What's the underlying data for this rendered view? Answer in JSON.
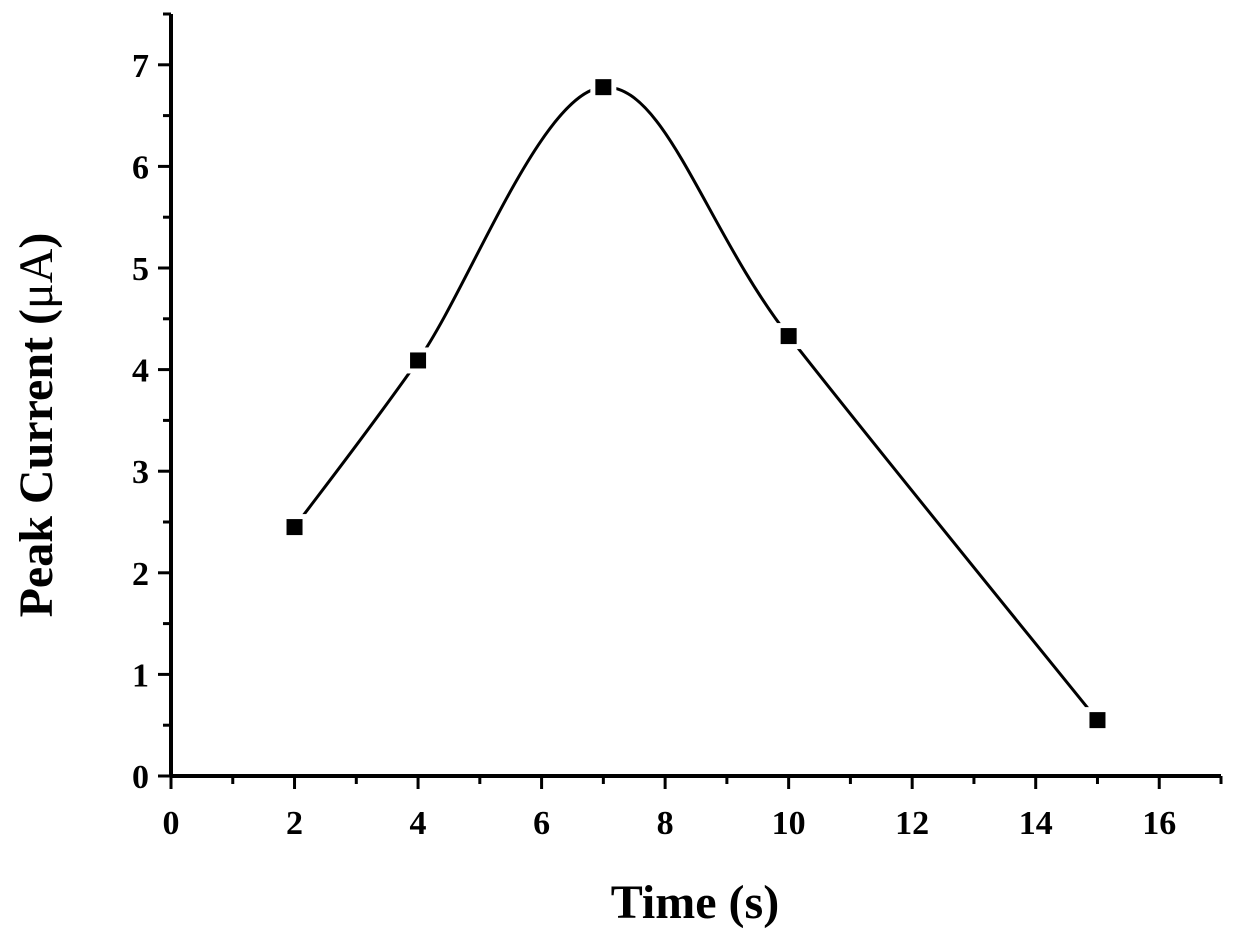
{
  "chart_data": {
    "type": "line",
    "title": "",
    "xlabel": "Time (s)",
    "ylabel_main": "Peak Current (",
    "ylabel_unit": "μA",
    "ylabel_close": ")",
    "xlim": [
      0,
      17
    ],
    "ylim": [
      0,
      7.5
    ],
    "x_ticks": [
      0,
      2,
      4,
      6,
      8,
      10,
      12,
      14,
      16
    ],
    "x_tick_labels": [
      "0",
      "2",
      "4",
      "6",
      "8",
      "10",
      "12",
      "14",
      "16"
    ],
    "y_ticks": [
      0,
      1,
      2,
      3,
      4,
      5,
      6,
      7
    ],
    "y_tick_labels": [
      "0",
      "1",
      "2",
      "3",
      "4",
      "5",
      "6",
      "7"
    ],
    "grid": false,
    "legend": "none",
    "marker": "square",
    "line_style": "smooth",
    "colors": {
      "line": "#000000",
      "marker": "#000000"
    },
    "series": [
      {
        "x": [
          2,
          4,
          7,
          10,
          15
        ],
        "y": [
          2.45,
          4.09,
          6.78,
          4.33,
          0.55
        ]
      }
    ]
  }
}
